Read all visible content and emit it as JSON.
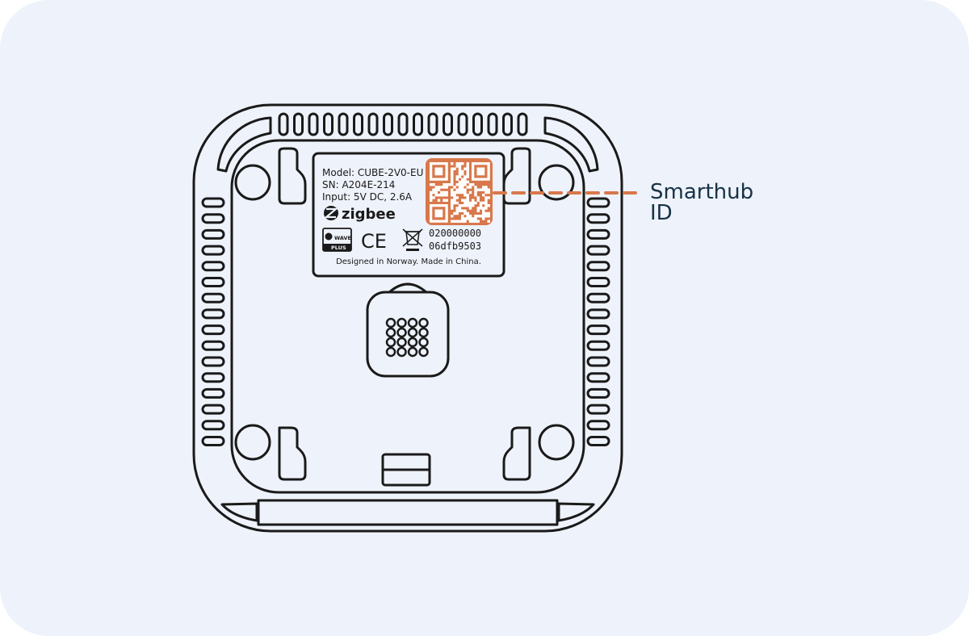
{
  "colors": {
    "background": "#eef2fa",
    "line": "#1a1a1a",
    "accent": "#d8784b",
    "annotation_text": "#173246"
  },
  "label": {
    "model": "Model: CUBE-2V0-EU",
    "serial": "SN: A204E-214",
    "input": "Input: 5V DC, 2.6A",
    "zigbee": "zigbee",
    "zwave_top": "WAVE",
    "zwave_bottom": "PLUS",
    "ce": "CE",
    "id_line1": "020000000",
    "id_line2": "06dfb9503",
    "footer": "Designed in Norway. Made in China."
  },
  "annotation": {
    "line1": "Smarthub",
    "line2": "ID"
  },
  "icons": {
    "zigbee_logo": "zigbee-logo-icon",
    "zwave_logo": "zwave-plus-logo-icon",
    "ce_mark": "ce-mark-icon",
    "weee": "weee-bin-icon",
    "qr": "qr-code-icon"
  }
}
